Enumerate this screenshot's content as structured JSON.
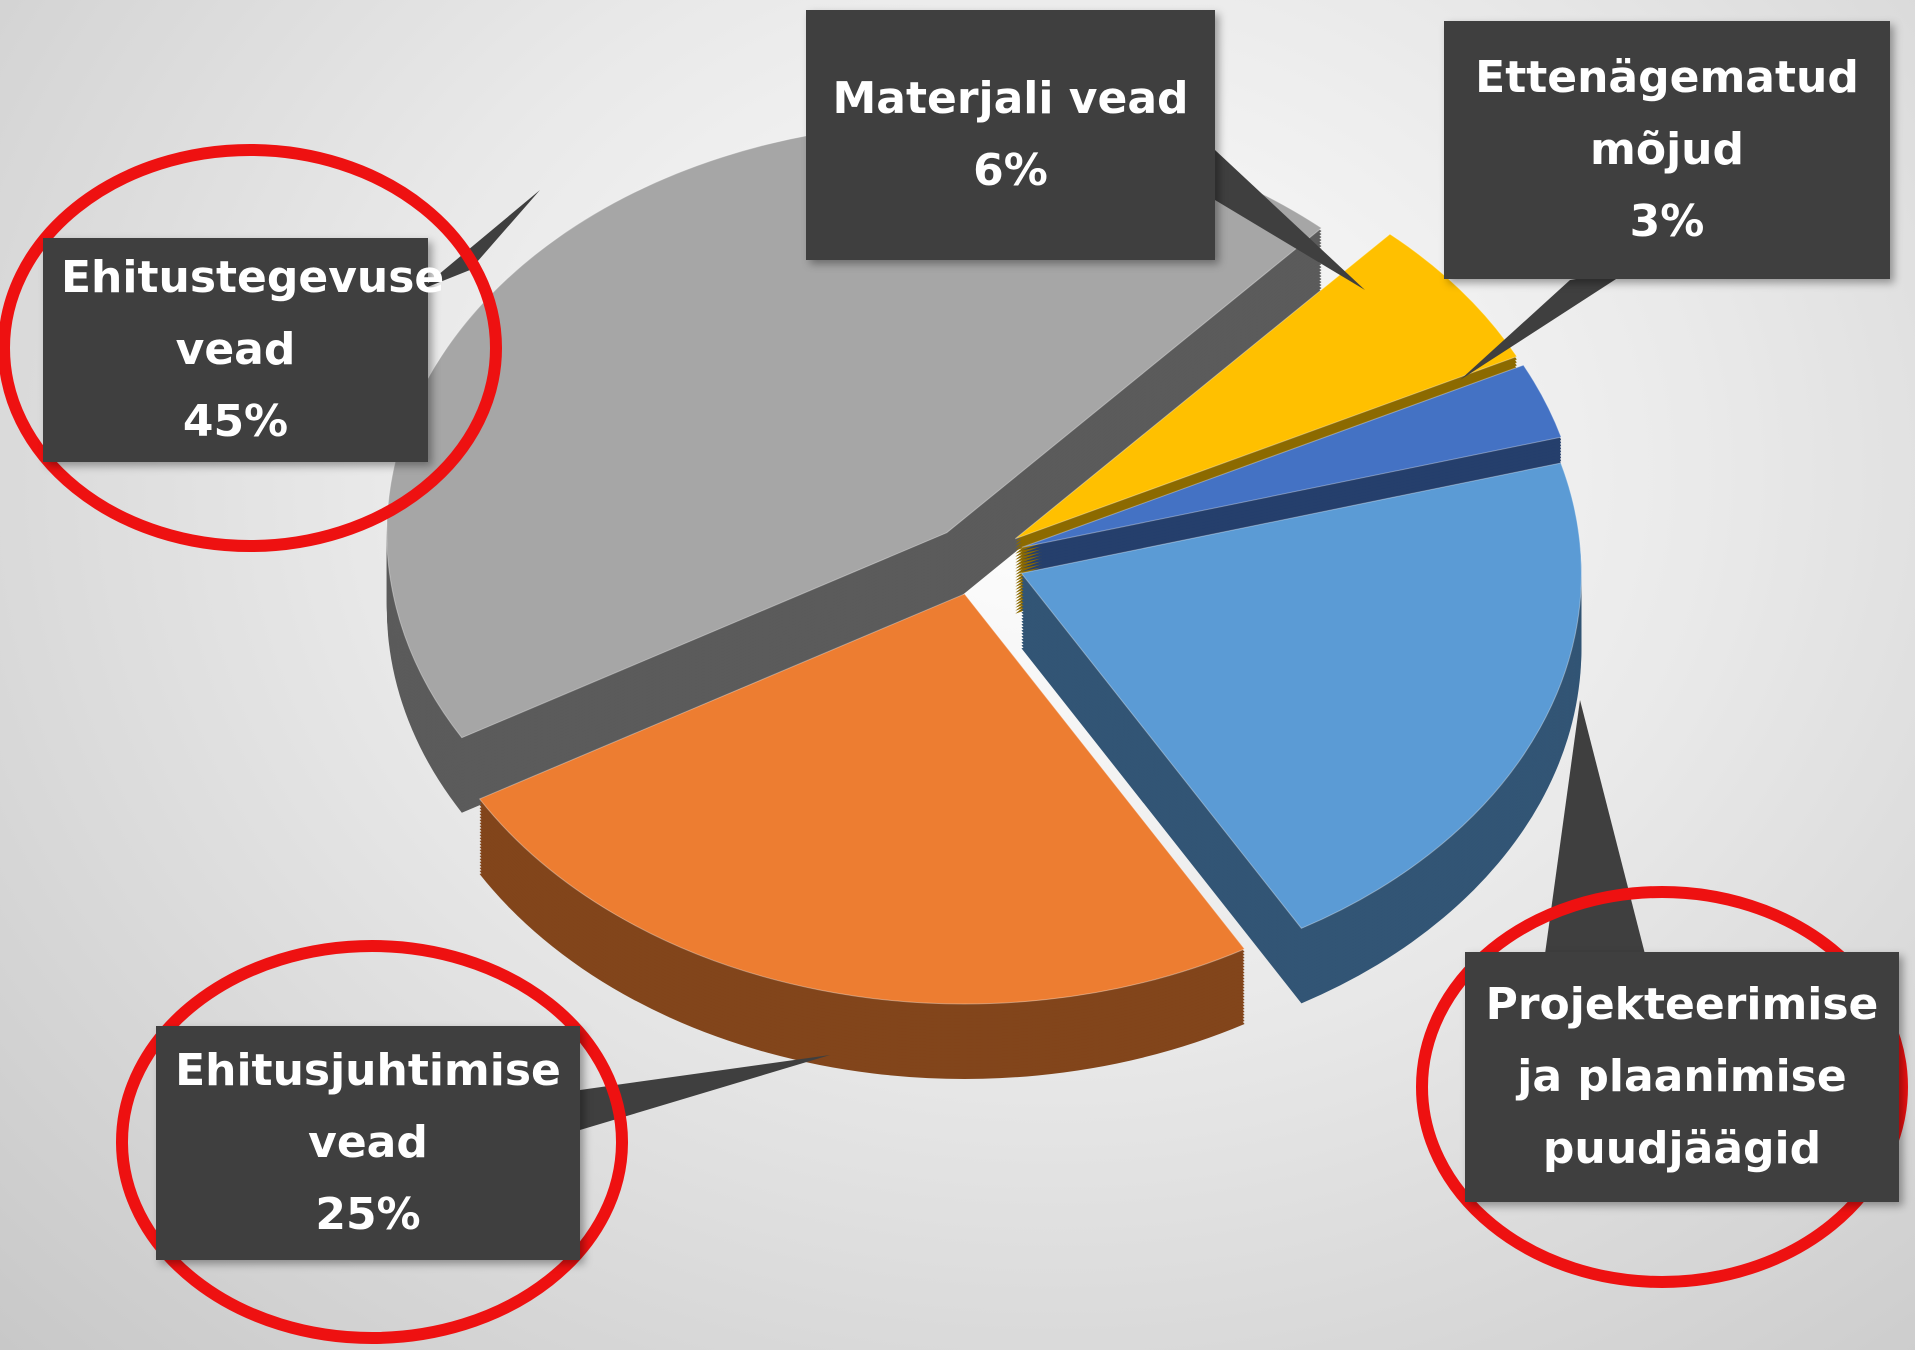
{
  "chart_data": {
    "type": "pie",
    "categories": [
      "Ehitustegevuse vead",
      "Materjali vead",
      "Ettenägematud mõjud",
      "Projekteerimise ja plaanimise puudjäägid",
      "Ehitusjuhtimise vead"
    ],
    "values": [
      45,
      6,
      3,
      21,
      25
    ],
    "value_labels": [
      "45%",
      "6%",
      "3%",
      null,
      "25%"
    ],
    "colors": [
      "#a6a6a6",
      "#ffc000",
      "#4472c4",
      "#5b9bd5",
      "#ed7d31"
    ]
  }
}
